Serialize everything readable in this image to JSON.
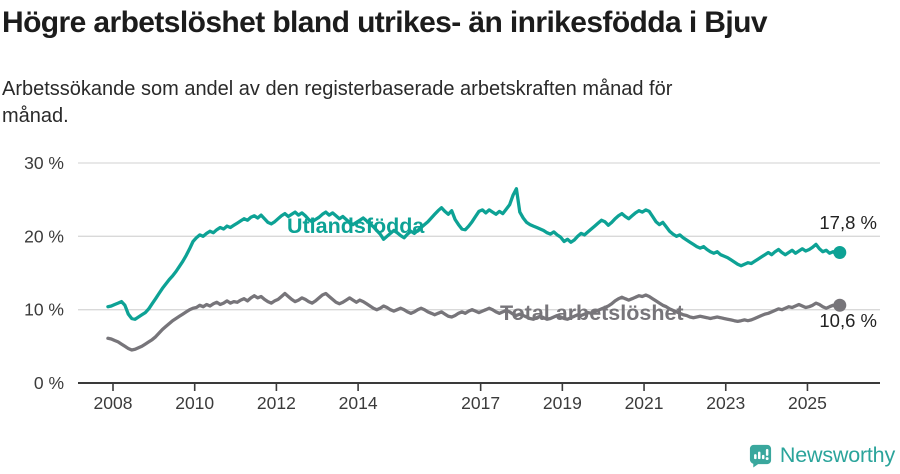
{
  "header": {
    "title": "Högre arbetslöshet bland utrikes- än inrikesfödda i Bjuv",
    "subtitle": "Arbetssökande som andel av den registerbaserade arbetskraften månad för månad."
  },
  "footer": {
    "brand": "Newsworthy"
  },
  "colors": {
    "accent_teal": "#0da295",
    "line_gray": "#77757a",
    "brand_teal": "#2ba49b",
    "gridline": "#d9d9d9",
    "axis": "#3a3a3a",
    "axis_text": "#3b3b3b",
    "value_label": "#222222"
  },
  "chart_data": {
    "type": "line",
    "unit": "%",
    "x_start": "2007-11",
    "x_end": "2025-10",
    "frequency": "monthly",
    "x_tick_years": [
      2008,
      2010,
      2012,
      2014,
      2017,
      2019,
      2021,
      2023,
      2025
    ],
    "y_ticks": [
      "30 %",
      "20 %",
      "10 %",
      "0 %"
    ],
    "y_tick_values": [
      30,
      20,
      10,
      0
    ],
    "ylim": [
      0,
      31
    ],
    "grid": true,
    "legend_position": "inline-labels",
    "series": [
      {
        "name": "Utlandsfödda",
        "color": "#0da295",
        "end_label": "17,8 %",
        "end_value": 17.8,
        "values": [
          10.4,
          10.5,
          10.7,
          10.9,
          11.1,
          10.6,
          9.4,
          8.8,
          8.7,
          9.0,
          9.3,
          9.6,
          10.1,
          10.8,
          11.5,
          12.2,
          12.9,
          13.5,
          14.1,
          14.6,
          15.2,
          15.9,
          16.6,
          17.4,
          18.3,
          19.3,
          19.8,
          20.2,
          20.0,
          20.4,
          20.7,
          20.5,
          20.9,
          21.2,
          21.0,
          21.4,
          21.2,
          21.5,
          21.8,
          22.1,
          22.4,
          22.2,
          22.6,
          22.8,
          22.5,
          22.9,
          22.4,
          21.9,
          21.7,
          22.0,
          22.4,
          22.8,
          23.1,
          22.7,
          23.0,
          23.3,
          22.9,
          23.2,
          22.8,
          22.3,
          22.0,
          22.3,
          22.6,
          23.0,
          23.3,
          22.9,
          23.2,
          22.8,
          22.4,
          22.7,
          22.3,
          21.9,
          21.6,
          21.9,
          22.2,
          22.5,
          22.1,
          21.7,
          21.3,
          20.8,
          20.3,
          19.6,
          20.0,
          20.4,
          20.8,
          20.5,
          20.1,
          19.8,
          20.3,
          20.7,
          20.4,
          20.8,
          21.2,
          21.6,
          22.0,
          22.5,
          23.0,
          23.5,
          23.9,
          23.4,
          23.0,
          23.5,
          22.3,
          21.6,
          21.0,
          20.9,
          21.4,
          22.0,
          22.7,
          23.4,
          23.6,
          23.2,
          23.6,
          23.3,
          23.0,
          23.4,
          23.1,
          23.7,
          24.3,
          25.6,
          26.5,
          23.3,
          22.5,
          21.9,
          21.6,
          21.4,
          21.2,
          21.0,
          20.8,
          20.5,
          20.3,
          20.6,
          20.2,
          19.9,
          19.3,
          19.6,
          19.2,
          19.5,
          20.0,
          20.4,
          20.2,
          20.6,
          21.0,
          21.4,
          21.8,
          22.2,
          22.0,
          21.5,
          21.9,
          22.4,
          22.8,
          23.1,
          22.7,
          22.4,
          22.8,
          23.2,
          23.5,
          23.3,
          23.6,
          23.4,
          22.7,
          22.0,
          21.6,
          21.9,
          21.3,
          20.7,
          20.3,
          20.0,
          20.2,
          19.8,
          19.5,
          19.2,
          18.9,
          18.6,
          18.4,
          18.6,
          18.2,
          17.9,
          17.7,
          17.9,
          17.5,
          17.3,
          17.1,
          16.8,
          16.5,
          16.2,
          16.0,
          16.2,
          16.4,
          16.3,
          16.6,
          16.9,
          17.2,
          17.5,
          17.8,
          17.5,
          17.9,
          18.2,
          17.8,
          17.5,
          17.8,
          18.1,
          17.7,
          18.0,
          18.3,
          18.0,
          18.2,
          18.5,
          18.9,
          18.3,
          17.9,
          18.1,
          17.7,
          17.9,
          17.6,
          17.8
        ]
      },
      {
        "name": "Total arbetslöshet",
        "color": "#77757a",
        "end_label": "10,6 %",
        "end_value": 10.6,
        "values": [
          6.1,
          6.0,
          5.8,
          5.6,
          5.3,
          5.0,
          4.7,
          4.5,
          4.6,
          4.8,
          5.0,
          5.3,
          5.6,
          5.9,
          6.3,
          6.8,
          7.3,
          7.7,
          8.1,
          8.5,
          8.8,
          9.1,
          9.4,
          9.7,
          10.0,
          10.2,
          10.3,
          10.6,
          10.4,
          10.7,
          10.5,
          10.8,
          11.0,
          10.7,
          10.9,
          11.2,
          10.9,
          11.1,
          11.0,
          11.3,
          11.5,
          11.2,
          11.6,
          11.9,
          11.6,
          11.8,
          11.4,
          11.1,
          10.9,
          11.2,
          11.4,
          11.8,
          12.2,
          11.8,
          11.4,
          11.1,
          11.3,
          11.6,
          11.4,
          11.1,
          10.9,
          11.2,
          11.6,
          12.0,
          12.2,
          11.8,
          11.4,
          11.0,
          10.8,
          11.0,
          11.3,
          11.6,
          11.3,
          11.0,
          11.3,
          11.1,
          10.8,
          10.5,
          10.2,
          10.0,
          10.2,
          10.5,
          10.3,
          10.0,
          9.8,
          10.0,
          10.2,
          10.0,
          9.7,
          9.5,
          9.7,
          10.0,
          10.2,
          10.0,
          9.7,
          9.5,
          9.3,
          9.5,
          9.7,
          9.4,
          9.1,
          9.0,
          9.2,
          9.5,
          9.7,
          9.5,
          9.8,
          10.0,
          9.8,
          9.6,
          9.8,
          10.0,
          10.2,
          10.0,
          9.7,
          9.5,
          9.7,
          9.9,
          9.7,
          9.4,
          9.2,
          9.4,
          9.2,
          9.0,
          8.8,
          8.7,
          8.9,
          9.1,
          8.9,
          8.7,
          8.8,
          9.0,
          9.2,
          9.0,
          8.8,
          8.7,
          8.9,
          9.1,
          9.3,
          9.2,
          9.4,
          9.6,
          9.5,
          9.7,
          9.9,
          10.1,
          10.3,
          10.5,
          10.8,
          11.2,
          11.5,
          11.7,
          11.5,
          11.3,
          11.5,
          11.7,
          11.9,
          11.8,
          12.0,
          11.8,
          11.5,
          11.2,
          10.9,
          10.6,
          10.4,
          10.1,
          9.9,
          9.7,
          9.5,
          9.3,
          9.2,
          9.0,
          8.9,
          9.0,
          9.1,
          9.0,
          8.9,
          8.8,
          8.9,
          9.0,
          8.9,
          8.8,
          8.7,
          8.6,
          8.5,
          8.4,
          8.5,
          8.6,
          8.5,
          8.6,
          8.8,
          9.0,
          9.2,
          9.4,
          9.5,
          9.7,
          9.9,
          10.1,
          10.0,
          10.2,
          10.4,
          10.3,
          10.5,
          10.7,
          10.5,
          10.3,
          10.4,
          10.6,
          10.9,
          10.7,
          10.4,
          10.2,
          10.4,
          10.6,
          10.5,
          10.6
        ]
      }
    ]
  }
}
